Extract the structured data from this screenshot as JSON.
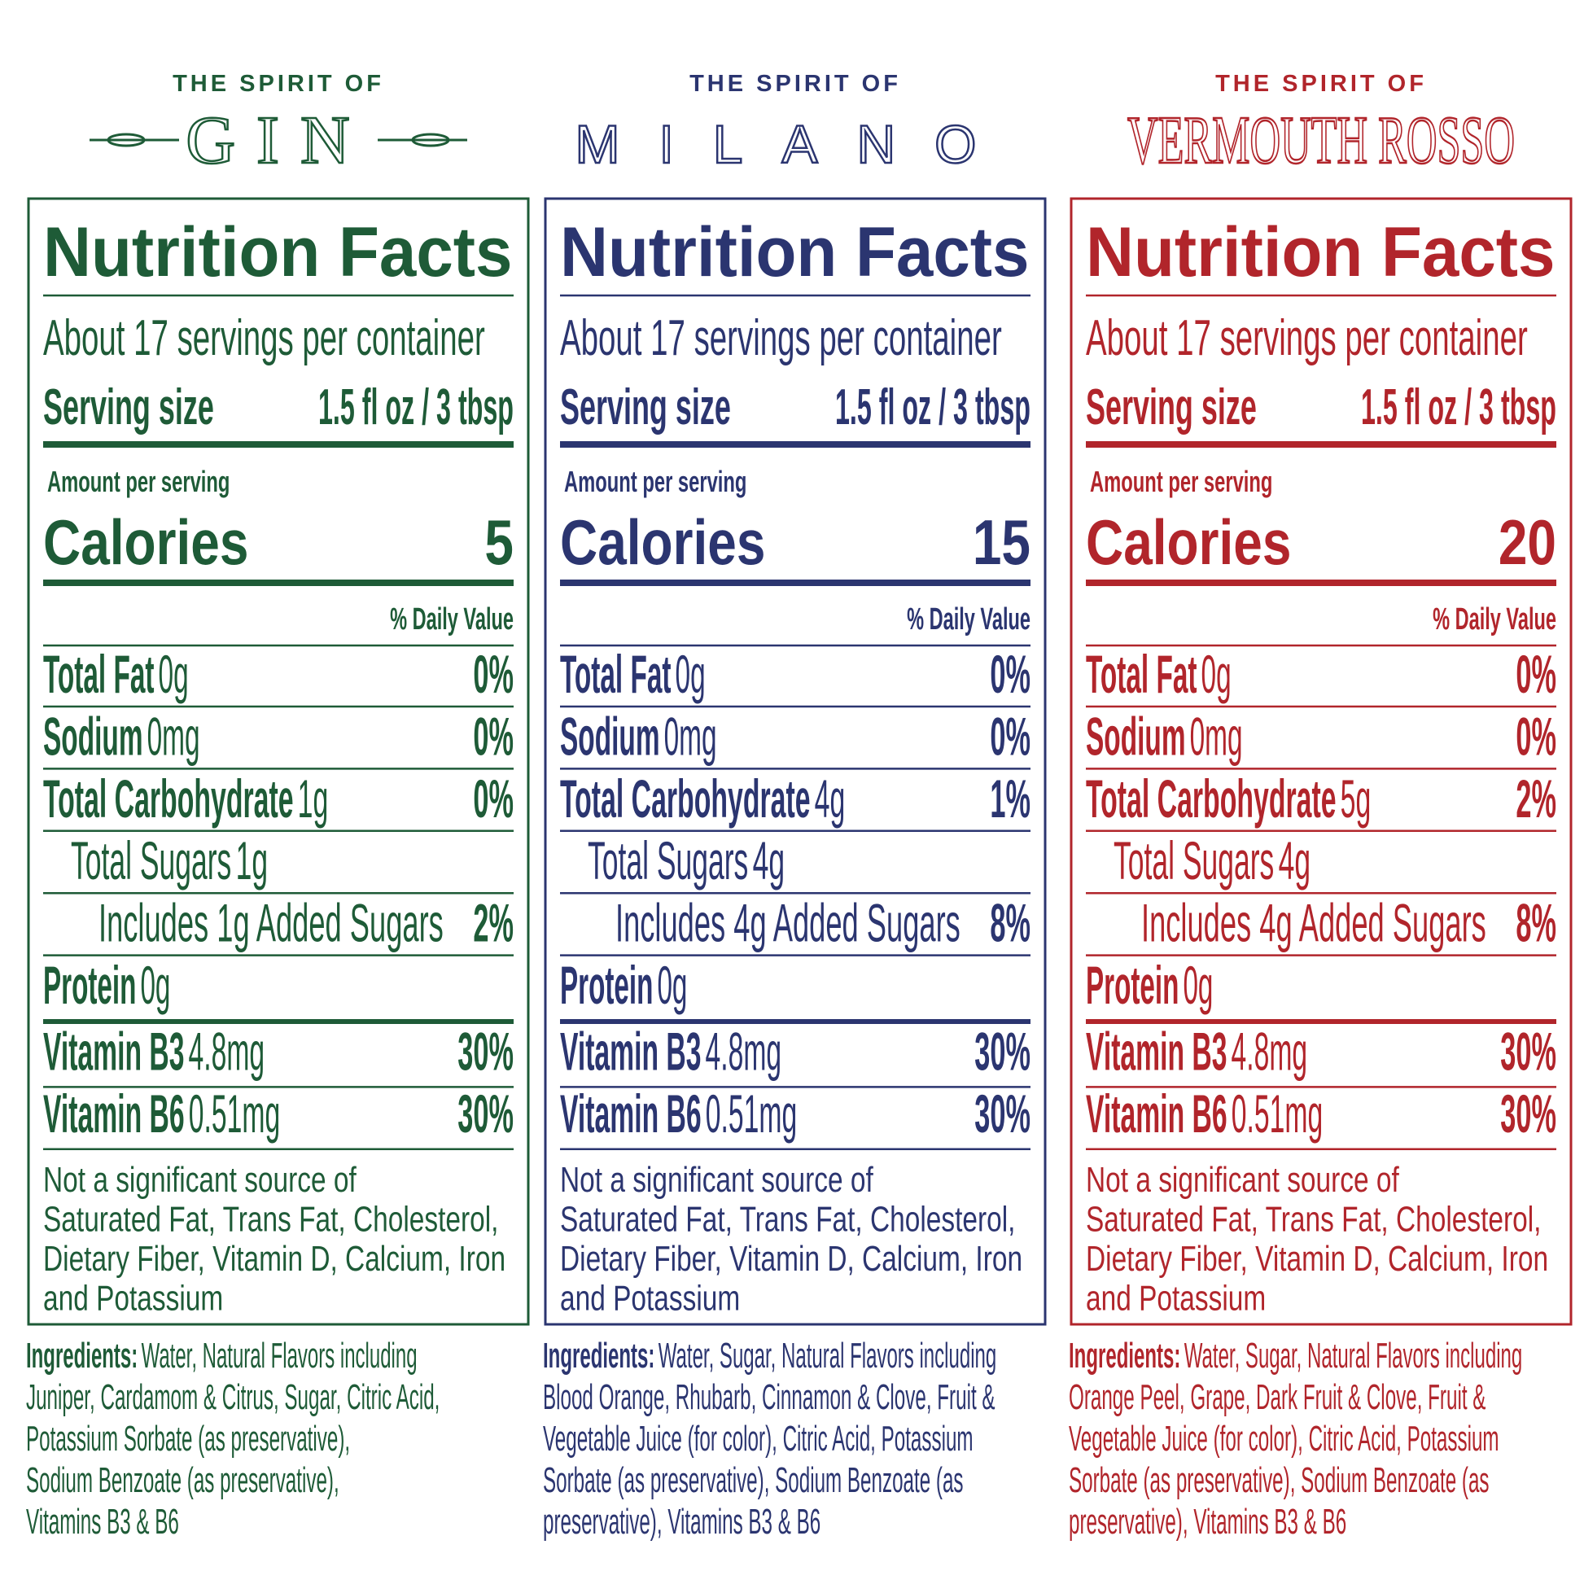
{
  "labels": [
    {
      "color": "#1e5b37",
      "brand_top": "THE SPIRIT OF",
      "brand": "GIN",
      "title": "Nutrition Facts",
      "servings": "About 17 servings per container",
      "serving_size_label": "Serving size",
      "serving_size": "1.5 fl oz / 3 tbsp",
      "amount_per_serving": "Amount per serving",
      "calories_label": "Calories",
      "calories": 5,
      "daily_value_header": "% Daily Value",
      "nutrients": [
        {
          "name": "Total Fat",
          "amount": "0g",
          "dv": "0%"
        },
        {
          "name": "Sodium",
          "amount": "0mg",
          "dv": "0%"
        },
        {
          "name": "Total Carbohydrate",
          "amount": "1g",
          "dv": "0%"
        },
        {
          "name": "Total Sugars",
          "amount": "1g"
        },
        {
          "name": "Includes 1g Added Sugars",
          "dv": "2%"
        },
        {
          "name": "Protein",
          "amount": "0g"
        },
        {
          "name": "Vitamin B3",
          "amount": "4.8mg",
          "dv": "30%"
        },
        {
          "name": "Vitamin B6",
          "amount": "0.51mg",
          "dv": "30%"
        }
      ],
      "note_lines": [
        "Not a significant source of",
        "Saturated Fat, Trans Fat, Cholesterol,",
        "Dietary Fiber, Vitamin D, Calcium, Iron",
        "and Potassium"
      ],
      "ingredients_label": "Ingredients:",
      "ingredients_lines": [
        "Water, Natural Flavors including",
        "Juniper, Cardamom & Citrus, Sugar, Citric Acid,",
        "Potassium Sorbate (as preservative),",
        "Sodium Benzoate (as preservative),",
        "Vitamins B3 & B6"
      ]
    },
    {
      "color": "#2b3570",
      "brand_top": "THE SPIRIT OF",
      "brand": "MILANO",
      "title": "Nutrition Facts",
      "servings": "About 17 servings per container",
      "serving_size_label": "Serving size",
      "serving_size": "1.5 fl oz / 3 tbsp",
      "amount_per_serving": "Amount per serving",
      "calories_label": "Calories",
      "calories": 15,
      "daily_value_header": "% Daily Value",
      "nutrients": [
        {
          "name": "Total Fat",
          "amount": "0g",
          "dv": "0%"
        },
        {
          "name": "Sodium",
          "amount": "0mg",
          "dv": "0%"
        },
        {
          "name": "Total Carbohydrate",
          "amount": "4g",
          "dv": "1%"
        },
        {
          "name": "Total Sugars",
          "amount": "4g"
        },
        {
          "name": "Includes 4g Added Sugars",
          "dv": "8%"
        },
        {
          "name": "Protein",
          "amount": "0g"
        },
        {
          "name": "Vitamin B3",
          "amount": "4.8mg",
          "dv": "30%"
        },
        {
          "name": "Vitamin B6",
          "amount": "0.51mg",
          "dv": "30%"
        }
      ],
      "note_lines": [
        "Not a significant source of",
        "Saturated Fat, Trans Fat, Cholesterol,",
        "Dietary Fiber, Vitamin D, Calcium, Iron",
        "and Potassium"
      ],
      "ingredients_label": "Ingredients:",
      "ingredients_lines": [
        "Water, Sugar, Natural Flavors including",
        "Blood Orange, Rhubarb, Cinnamon & Clove, Fruit &",
        "Vegetable Juice (for color), Citric Acid, Potassium",
        "Sorbate (as preservative),  Sodium Benzoate (as",
        "preservative), Vitamins B3 & B6"
      ]
    },
    {
      "color": "#b1252b",
      "brand_top": "THE SPIRIT OF",
      "brand": "VERMOUTH ROSSO",
      "title": "Nutrition Facts",
      "servings": "About 17 servings per container",
      "serving_size_label": "Serving size",
      "serving_size": "1.5 fl oz / 3 tbsp",
      "amount_per_serving": "Amount per serving",
      "calories_label": "Calories",
      "calories": 20,
      "daily_value_header": "% Daily Value",
      "nutrients": [
        {
          "name": "Total Fat",
          "amount": "0g",
          "dv": "0%"
        },
        {
          "name": "Sodium",
          "amount": "0mg",
          "dv": "0%"
        },
        {
          "name": "Total Carbohydrate",
          "amount": "5g",
          "dv": "2%"
        },
        {
          "name": "Total Sugars",
          "amount": "4g"
        },
        {
          "name": "Includes 4g Added Sugars",
          "dv": "8%"
        },
        {
          "name": "Protein",
          "amount": "0g"
        },
        {
          "name": "Vitamin B3",
          "amount": "4.8mg",
          "dv": "30%"
        },
        {
          "name": "Vitamin B6",
          "amount": "0.51mg",
          "dv": "30%"
        }
      ],
      "note_lines": [
        "Not a significant source of",
        "Saturated Fat, Trans Fat, Cholesterol,",
        "Dietary Fiber, Vitamin D, Calcium, Iron",
        "and Potassium"
      ],
      "ingredients_label": "Ingredients:",
      "ingredients_lines": [
        "Water, Sugar, Natural Flavors including",
        "Orange Peel, Grape, Dark Fruit & Clove, Fruit &",
        "Vegetable Juice (for color), Citric Acid, Potassium",
        "Sorbate (as preservative),  Sodium Benzoate (as",
        "preservative), Vitamins B3 & B6"
      ]
    }
  ]
}
